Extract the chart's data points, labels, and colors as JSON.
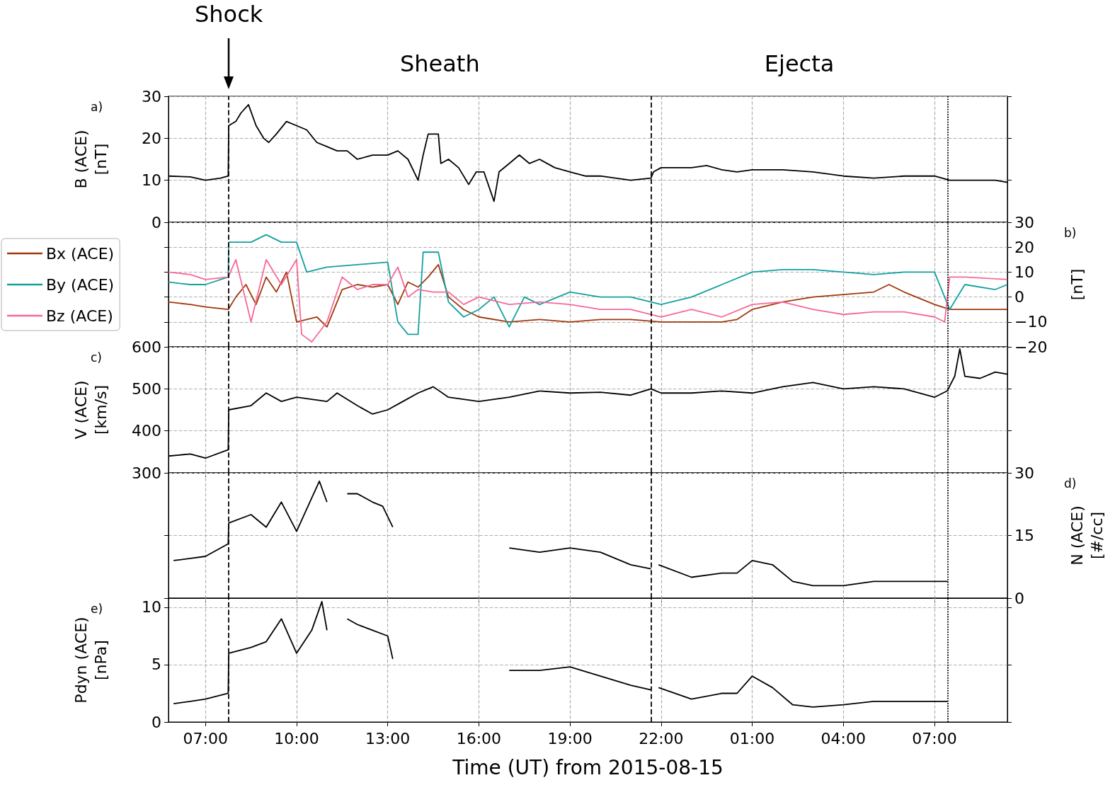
{
  "chart_data": [
    {
      "type": "line",
      "ylabel": "B (ACE)\n[nT]",
      "xlim": [
        "2015-08-15T05:47",
        "2015-08-16T09:24"
      ],
      "ylim": [
        0,
        30
      ],
      "yticks": [
        0,
        10,
        20,
        30
      ],
      "xticks": [
        {
          "value": "2015-08-15T07:00",
          "label": null
        },
        {
          "value": "2015-08-15T10:00",
          "label": null
        },
        {
          "value": "2015-08-15T13:00",
          "label": null
        },
        {
          "value": "2015-08-15T16:00",
          "label": null
        },
        {
          "value": "2015-08-15T19:00",
          "label": null
        },
        {
          "value": "2015-08-15T22:00",
          "label": null
        },
        {
          "value": "2015-08-16T01:00",
          "label": null
        },
        {
          "value": "2015-08-16T04:00",
          "label": null
        },
        {
          "value": "2015-08-16T07:00",
          "label": null
        }
      ],
      "tick_labels": "y",
      "grid": true,
      "marker": "none",
      "series": [
        {
          "color": "#000000",
          "x": [
            "2015-08-15T05:47",
            "2015-08-15T06:30",
            "2015-08-15T07:00",
            "2015-08-15T07:30",
            "2015-08-15T07:45",
            "2015-08-15T07:46",
            "2015-08-15T08:00",
            "2015-08-15T08:10",
            "2015-08-15T08:25",
            "2015-08-15T08:40",
            "2015-08-15T08:55",
            "2015-08-15T09:05",
            "2015-08-15T09:20",
            "2015-08-15T09:40",
            "2015-08-15T10:00",
            "2015-08-15T10:20",
            "2015-08-15T10:40",
            "2015-08-15T11:00",
            "2015-08-15T11:20",
            "2015-08-15T11:40",
            "2015-08-15T12:00",
            "2015-08-15T12:30",
            "2015-08-15T13:00",
            "2015-08-15T13:20",
            "2015-08-15T13:40",
            "2015-08-15T14:00",
            "2015-08-15T14:10",
            "2015-08-15T14:20",
            "2015-08-15T14:40",
            "2015-08-15T14:45",
            "2015-08-15T15:00",
            "2015-08-15T15:20",
            "2015-08-15T15:40",
            "2015-08-15T15:55",
            "2015-08-15T16:10",
            "2015-08-15T16:30",
            "2015-08-15T16:40",
            "2015-08-15T17:00",
            "2015-08-15T17:20",
            "2015-08-15T17:40",
            "2015-08-15T18:00",
            "2015-08-15T18:30",
            "2015-08-15T19:00",
            "2015-08-15T19:30",
            "2015-08-15T20:00",
            "2015-08-15T20:30",
            "2015-08-15T21:00",
            "2015-08-15T21:40",
            "2015-08-15T21:45",
            "2015-08-15T22:00",
            "2015-08-15T23:00",
            "2015-08-15T23:30",
            "2015-08-16T00:00",
            "2015-08-16T00:30",
            "2015-08-16T01:00",
            "2015-08-16T02:00",
            "2015-08-16T03:00",
            "2015-08-16T04:00",
            "2015-08-16T05:00",
            "2015-08-16T06:00",
            "2015-08-16T07:00",
            "2015-08-16T07:30",
            "2015-08-16T08:00",
            "2015-08-16T09:00",
            "2015-08-16T09:24"
          ],
          "values": [
            11,
            10.8,
            10,
            10.5,
            11,
            23,
            24,
            26,
            28,
            23,
            20,
            19,
            21,
            24,
            23,
            22,
            19,
            18,
            17,
            17,
            15,
            16,
            16,
            17,
            15,
            10,
            16,
            21,
            21,
            14,
            15,
            13,
            9,
            12,
            12,
            5,
            12,
            14,
            16,
            14,
            15,
            13,
            12,
            11,
            11,
            10.5,
            10,
            10.5,
            12,
            13,
            13,
            13.5,
            12.5,
            12,
            12.5,
            12.5,
            12,
            11,
            10.5,
            11,
            11,
            10,
            10,
            10,
            9.5
          ]
        }
      ],
      "ref_lines": [
        {
          "axis": "x",
          "value": "2015-08-15T07:46",
          "label": "Shock",
          "line_style": "dashed",
          "color": "#000000"
        },
        {
          "axis": "x",
          "value": "2015-08-15T21:40",
          "line_style": "dashed",
          "color": "#000000"
        },
        {
          "axis": "x",
          "value": "2015-08-16T07:26",
          "line_style": "dotted",
          "color": "#000000"
        }
      ],
      "annotations": [
        "a)",
        "Sheath",
        "Ejecta"
      ]
    },
    {
      "type": "line",
      "y2label": "[nT]",
      "xlim": [
        "2015-08-15T05:47",
        "2015-08-16T09:24"
      ],
      "y2lim": [
        -20,
        30
      ],
      "y2ticks": [
        {
          "value": -20,
          "label": "−20"
        },
        {
          "value": -10,
          "label": "−10"
        },
        0,
        10,
        20,
        30
      ],
      "xticks": [
        {
          "value": "2015-08-15T07:00",
          "label": null
        },
        {
          "value": "2015-08-15T10:00",
          "label": null
        },
        {
          "value": "2015-08-15T13:00",
          "label": null
        },
        {
          "value": "2015-08-15T16:00",
          "label": null
        },
        {
          "value": "2015-08-15T19:00",
          "label": null
        },
        {
          "value": "2015-08-15T22:00",
          "label": null
        },
        {
          "value": "2015-08-16T01:00",
          "label": null
        },
        {
          "value": "2015-08-16T04:00",
          "label": null
        },
        {
          "value": "2015-08-16T07:00",
          "label": null
        }
      ],
      "tick_labels": "y",
      "grid": true,
      "marker": "none",
      "legend": "left",
      "series": [
        {
          "name": "Bx (ACE)",
          "color": "#a0380c",
          "axis": "y2",
          "x": [
            "2015-08-15T05:47",
            "2015-08-15T06:30",
            "2015-08-15T07:00",
            "2015-08-15T07:45",
            "2015-08-15T08:00",
            "2015-08-15T08:20",
            "2015-08-15T08:40",
            "2015-08-15T09:00",
            "2015-08-15T09:20",
            "2015-08-15T09:40",
            "2015-08-15T10:00",
            "2015-08-15T10:20",
            "2015-08-15T10:40",
            "2015-08-15T11:00",
            "2015-08-15T11:30",
            "2015-08-15T12:00",
            "2015-08-15T12:30",
            "2015-08-15T13:00",
            "2015-08-15T13:20",
            "2015-08-15T13:40",
            "2015-08-15T14:00",
            "2015-08-15T14:20",
            "2015-08-15T14:40",
            "2015-08-15T15:00",
            "2015-08-15T15:30",
            "2015-08-15T16:00",
            "2015-08-15T17:00",
            "2015-08-15T18:00",
            "2015-08-15T19:00",
            "2015-08-15T20:00",
            "2015-08-15T21:00",
            "2015-08-15T22:00",
            "2015-08-15T23:00",
            "2015-08-16T00:00",
            "2015-08-16T00:30",
            "2015-08-16T01:00",
            "2015-08-16T02:00",
            "2015-08-16T03:00",
            "2015-08-16T04:00",
            "2015-08-16T05:00",
            "2015-08-16T05:30",
            "2015-08-16T06:00",
            "2015-08-16T07:00",
            "2015-08-16T07:30",
            "2015-08-16T08:00",
            "2015-08-16T09:00",
            "2015-08-16T09:24"
          ],
          "values": [
            -2,
            -3,
            -4,
            -5,
            0,
            5,
            -3,
            8,
            2,
            10,
            -10,
            -9,
            -8,
            -12,
            3,
            5,
            4,
            5,
            -3,
            6,
            4,
            8,
            13,
            0,
            -5,
            -8,
            -10,
            -9,
            -10,
            -9,
            -9,
            -10,
            -10,
            -10,
            -9,
            -5,
            -2,
            0,
            1,
            2,
            5,
            2,
            -3,
            -5,
            -5,
            -5,
            -5
          ]
        },
        {
          "name": "By (ACE)",
          "color": "#13a0a0",
          "axis": "y2",
          "x": [
            "2015-08-15T05:47",
            "2015-08-15T06:30",
            "2015-08-15T07:00",
            "2015-08-15T07:45",
            "2015-08-15T07:46",
            "2015-08-15T08:30",
            "2015-08-15T09:00",
            "2015-08-15T09:30",
            "2015-08-15T10:00",
            "2015-08-15T10:20",
            "2015-08-15T11:00",
            "2015-08-15T12:00",
            "2015-08-15T13:00",
            "2015-08-15T13:20",
            "2015-08-15T13:40",
            "2015-08-15T14:00",
            "2015-08-15T14:10",
            "2015-08-15T14:40",
            "2015-08-15T15:00",
            "2015-08-15T15:30",
            "2015-08-15T16:00",
            "2015-08-15T16:30",
            "2015-08-15T17:00",
            "2015-08-15T17:30",
            "2015-08-15T18:00",
            "2015-08-15T19:00",
            "2015-08-15T20:00",
            "2015-08-15T21:00",
            "2015-08-15T22:00",
            "2015-08-15T23:00",
            "2015-08-16T00:00",
            "2015-08-16T01:00",
            "2015-08-16T02:00",
            "2015-08-16T03:00",
            "2015-08-16T04:00",
            "2015-08-16T05:00",
            "2015-08-16T06:00",
            "2015-08-16T07:00",
            "2015-08-16T07:30",
            "2015-08-16T08:00",
            "2015-08-16T09:00",
            "2015-08-16T09:24"
          ],
          "values": [
            6,
            5,
            5,
            8,
            22,
            22,
            25,
            22,
            22,
            10,
            12,
            13,
            14,
            -10,
            -15,
            -15,
            18,
            18,
            -2,
            -8,
            -5,
            0,
            -12,
            0,
            -3,
            2,
            0,
            0,
            -3,
            0,
            5,
            10,
            11,
            11,
            10,
            9,
            10,
            10,
            -5,
            5,
            3,
            5
          ]
        },
        {
          "name": "Bz (ACE)",
          "color": "#f7689a",
          "axis": "y2",
          "x": [
            "2015-08-15T05:47",
            "2015-08-15T06:30",
            "2015-08-15T07:00",
            "2015-08-15T07:45",
            "2015-08-15T08:00",
            "2015-08-15T08:30",
            "2015-08-15T09:00",
            "2015-08-15T09:30",
            "2015-08-15T10:00",
            "2015-08-15T10:10",
            "2015-08-15T10:30",
            "2015-08-15T11:00",
            "2015-08-15T11:30",
            "2015-08-15T12:00",
            "2015-08-15T12:30",
            "2015-08-15T13:00",
            "2015-08-15T13:20",
            "2015-08-15T13:40",
            "2015-08-15T14:00",
            "2015-08-15T14:30",
            "2015-08-15T15:00",
            "2015-08-15T15:30",
            "2015-08-15T16:00",
            "2015-08-15T17:00",
            "2015-08-15T18:00",
            "2015-08-15T19:00",
            "2015-08-15T20:00",
            "2015-08-15T21:00",
            "2015-08-15T22:00",
            "2015-08-15T23:00",
            "2015-08-16T00:00",
            "2015-08-16T01:00",
            "2015-08-16T02:00",
            "2015-08-16T03:00",
            "2015-08-16T04:00",
            "2015-08-16T05:00",
            "2015-08-16T06:00",
            "2015-08-16T07:00",
            "2015-08-16T07:20",
            "2015-08-16T07:30",
            "2015-08-16T08:00",
            "2015-08-16T09:24"
          ],
          "values": [
            10,
            9,
            7,
            8,
            15,
            -10,
            15,
            5,
            15,
            -15,
            -18,
            -10,
            8,
            3,
            5,
            5,
            12,
            0,
            3,
            2,
            2,
            -3,
            0,
            -3,
            -2,
            -3,
            -5,
            -5,
            -8,
            -5,
            -8,
            -3,
            -2,
            -5,
            -7,
            -6,
            -6,
            -8,
            -10,
            8,
            8,
            7
          ]
        }
      ],
      "ref_lines": [
        {
          "axis": "x",
          "value": "2015-08-15T07:46",
          "line_style": "dashed",
          "color": "#000000"
        },
        {
          "axis": "x",
          "value": "2015-08-15T21:40",
          "line_style": "dashed",
          "color": "#000000"
        },
        {
          "axis": "x",
          "value": "2015-08-16T07:26",
          "line_style": "dotted",
          "color": "#000000"
        }
      ],
      "annotations": [
        "b)"
      ]
    },
    {
      "type": "line",
      "ylabel": "V (ACE)\n[km/s]",
      "xlim": [
        "2015-08-15T05:47",
        "2015-08-16T09:24"
      ],
      "ylim": [
        300,
        600
      ],
      "yticks": [
        300,
        400,
        500,
        600
      ],
      "xticks": [
        {
          "value": "2015-08-15T07:00",
          "label": null
        },
        {
          "value": "2015-08-15T10:00",
          "label": null
        },
        {
          "value": "2015-08-15T13:00",
          "label": null
        },
        {
          "value": "2015-08-15T16:00",
          "label": null
        },
        {
          "value": "2015-08-15T19:00",
          "label": null
        },
        {
          "value": "2015-08-15T22:00",
          "label": null
        },
        {
          "value": "2015-08-16T01:00",
          "label": null
        },
        {
          "value": "2015-08-16T04:00",
          "label": null
        },
        {
          "value": "2015-08-16T07:00",
          "label": null
        }
      ],
      "tick_labels": "y",
      "grid": true,
      "marker": "none",
      "series": [
        {
          "color": "#000000",
          "x": [
            "2015-08-15T05:47",
            "2015-08-15T06:30",
            "2015-08-15T07:00",
            "2015-08-15T07:45",
            "2015-08-15T07:46",
            "2015-08-15T08:30",
            "2015-08-15T09:00",
            "2015-08-15T09:30",
            "2015-08-15T10:00",
            "2015-08-15T11:00",
            "2015-08-15T11:20",
            "2015-08-15T12:00",
            "2015-08-15T12:30",
            "2015-08-15T13:00",
            "2015-08-15T13:30",
            "2015-08-15T14:00",
            "2015-08-15T14:30",
            "2015-08-15T15:00",
            "2015-08-15T16:00",
            "2015-08-15T17:00",
            "2015-08-15T18:00",
            "2015-08-15T19:00",
            "2015-08-15T20:00",
            "2015-08-15T21:00",
            "2015-08-15T21:40",
            "2015-08-15T22:00",
            "2015-08-15T23:00",
            "2015-08-16T00:00",
            "2015-08-16T01:00",
            "2015-08-16T02:00",
            "2015-08-16T03:00",
            "2015-08-16T04:00",
            "2015-08-16T05:00",
            "2015-08-16T06:00",
            "2015-08-16T07:00",
            "2015-08-16T07:25",
            "2015-08-16T07:40",
            "2015-08-16T07:50",
            "2015-08-16T08:00",
            "2015-08-16T08:30",
            "2015-08-16T09:00",
            "2015-08-16T09:24"
          ],
          "values": [
            340,
            345,
            335,
            355,
            450,
            460,
            490,
            470,
            480,
            470,
            490,
            460,
            440,
            450,
            470,
            490,
            505,
            480,
            470,
            480,
            495,
            490,
            492,
            485,
            500,
            490,
            490,
            495,
            490,
            505,
            515,
            500,
            505,
            500,
            480,
            495,
            530,
            595,
            530,
            525,
            540,
            535
          ]
        }
      ],
      "ref_lines": [
        {
          "axis": "x",
          "value": "2015-08-15T07:46",
          "line_style": "dashed",
          "color": "#000000"
        },
        {
          "axis": "x",
          "value": "2015-08-15T21:40",
          "line_style": "dashed",
          "color": "#000000"
        },
        {
          "axis": "x",
          "value": "2015-08-16T07:26",
          "line_style": "dotted",
          "color": "#000000"
        }
      ],
      "annotations": [
        "c)"
      ]
    },
    {
      "type": "line",
      "y2label": "N (ACE)\n[#/cc]",
      "xlim": [
        "2015-08-15T05:47",
        "2015-08-16T09:24"
      ],
      "y2lim": [
        0,
        30
      ],
      "y2ticks": [
        0,
        15,
        30
      ],
      "xticks": [
        {
          "value": "2015-08-15T07:00",
          "label": null
        },
        {
          "value": "2015-08-15T10:00",
          "label": null
        },
        {
          "value": "2015-08-15T13:00",
          "label": null
        },
        {
          "value": "2015-08-15T16:00",
          "label": null
        },
        {
          "value": "2015-08-15T19:00",
          "label": null
        },
        {
          "value": "2015-08-15T22:00",
          "label": null
        },
        {
          "value": "2015-08-16T01:00",
          "label": null
        },
        {
          "value": "2015-08-16T04:00",
          "label": null
        },
        {
          "value": "2015-08-16T07:00",
          "label": null
        }
      ],
      "tick_labels": "y",
      "grid": true,
      "marker": "none",
      "series": [
        {
          "color": "#000000",
          "axis": "y2",
          "x": [
            "2015-08-15T05:57",
            "2015-08-15T06:30",
            "2015-08-15T07:00",
            "2015-08-15T07:45",
            "2015-08-15T07:46",
            "2015-08-15T08:30",
            "2015-08-15T09:00",
            "2015-08-15T09:30",
            "2015-08-15T10:00",
            "2015-08-15T10:30",
            "2015-08-15T10:45",
            "2015-08-15T11:00",
            "2015-08-15T11:20",
            "2015-08-15T11:40",
            "2015-08-15T12:00",
            "2015-08-15T12:30",
            "2015-08-15T12:50",
            "2015-08-15T13:10",
            "2015-08-15T15:00",
            "2015-08-15T17:00",
            "2015-08-15T18:00",
            "2015-08-15T19:00",
            "2015-08-15T20:00",
            "2015-08-15T21:00",
            "2015-08-15T21:40",
            "2015-08-15T21:48",
            "2015-08-15T21:55",
            "2015-08-15T23:00",
            "2015-08-16T00:00",
            "2015-08-16T00:30",
            "2015-08-16T01:00",
            "2015-08-16T01:40",
            "2015-08-16T02:20",
            "2015-08-16T03:00",
            "2015-08-16T04:00",
            "2015-08-16T05:00",
            "2015-08-16T06:00",
            "2015-08-16T07:00",
            "2015-08-16T07:26"
          ],
          "values": [
            9,
            9.5,
            10,
            13,
            18,
            20,
            17,
            23,
            16,
            24,
            28,
            23,
            null,
            25,
            25,
            23,
            22,
            17,
            null,
            12,
            11,
            12,
            11,
            8,
            7,
            null,
            8,
            5,
            6,
            6,
            9,
            8,
            4,
            3,
            3,
            4,
            4,
            4,
            4
          ]
        }
      ],
      "ref_lines": [
        {
          "axis": "x",
          "value": "2015-08-15T07:46",
          "line_style": "dashed",
          "color": "#000000"
        },
        {
          "axis": "x",
          "value": "2015-08-15T21:40",
          "line_style": "dashed",
          "color": "#000000"
        },
        {
          "axis": "x",
          "value": "2015-08-16T07:26",
          "line_style": "dotted",
          "color": "#000000"
        }
      ],
      "annotations": [
        "d)"
      ]
    },
    {
      "type": "line",
      "ylabel": "Pdyn (ACE)\n[nPa]",
      "xlabel": "Time (UT) from 2015-08-15",
      "xlim": [
        "2015-08-15T05:47",
        "2015-08-16T09:24"
      ],
      "ylim": [
        0,
        10.8
      ],
      "yticks": [
        0,
        5,
        10
      ],
      "xticks": [
        {
          "value": "2015-08-15T07:00",
          "label": "07:00"
        },
        {
          "value": "2015-08-15T10:00",
          "label": "10:00"
        },
        {
          "value": "2015-08-15T13:00",
          "label": "13:00"
        },
        {
          "value": "2015-08-15T16:00",
          "label": "16:00"
        },
        {
          "value": "2015-08-15T19:00",
          "label": "19:00"
        },
        {
          "value": "2015-08-15T22:00",
          "label": "22:00"
        },
        {
          "value": "2015-08-16T01:00",
          "label": "01:00"
        },
        {
          "value": "2015-08-16T04:00",
          "label": "04:00"
        },
        {
          "value": "2015-08-16T07:00",
          "label": "07:00"
        }
      ],
      "grid": true,
      "marker": "none",
      "series": [
        {
          "color": "#000000",
          "x": [
            "2015-08-15T05:57",
            "2015-08-15T06:30",
            "2015-08-15T07:00",
            "2015-08-15T07:45",
            "2015-08-15T07:46",
            "2015-08-15T08:30",
            "2015-08-15T09:00",
            "2015-08-15T09:30",
            "2015-08-15T10:00",
            "2015-08-15T10:30",
            "2015-08-15T10:50",
            "2015-08-15T11:00",
            "2015-08-15T11:20",
            "2015-08-15T11:40",
            "2015-08-15T12:00",
            "2015-08-15T12:30",
            "2015-08-15T13:00",
            "2015-08-15T13:10",
            "2015-08-15T15:00",
            "2015-08-15T17:00",
            "2015-08-15T18:00",
            "2015-08-15T19:00",
            "2015-08-15T20:00",
            "2015-08-15T21:00",
            "2015-08-15T21:40",
            "2015-08-15T21:48",
            "2015-08-15T21:55",
            "2015-08-15T23:00",
            "2015-08-16T00:00",
            "2015-08-16T00:30",
            "2015-08-16T01:00",
            "2015-08-16T01:40",
            "2015-08-16T02:20",
            "2015-08-16T03:00",
            "2015-08-16T04:00",
            "2015-08-16T05:00",
            "2015-08-16T06:00",
            "2015-08-16T07:00",
            "2015-08-16T07:26"
          ],
          "values": [
            1.6,
            1.8,
            2,
            2.5,
            6,
            6.5,
            7,
            9,
            6,
            8,
            10.5,
            8,
            null,
            9,
            8.5,
            8,
            7.5,
            5.5,
            null,
            4.5,
            4.5,
            4.8,
            4,
            3.2,
            2.8,
            null,
            3,
            2,
            2.5,
            2.5,
            4,
            3,
            1.5,
            1.3,
            1.5,
            1.8,
            1.8,
            1.8,
            1.8
          ]
        }
      ],
      "ref_lines": [
        {
          "axis": "x",
          "value": "2015-08-15T07:46",
          "line_style": "dashed",
          "color": "#000000"
        },
        {
          "axis": "x",
          "value": "2015-08-15T21:40",
          "line_style": "dashed",
          "color": "#000000"
        },
        {
          "axis": "x",
          "value": "2015-08-16T07:26",
          "line_style": "dotted",
          "color": "#000000"
        }
      ],
      "annotations": [
        "e)"
      ]
    }
  ]
}
